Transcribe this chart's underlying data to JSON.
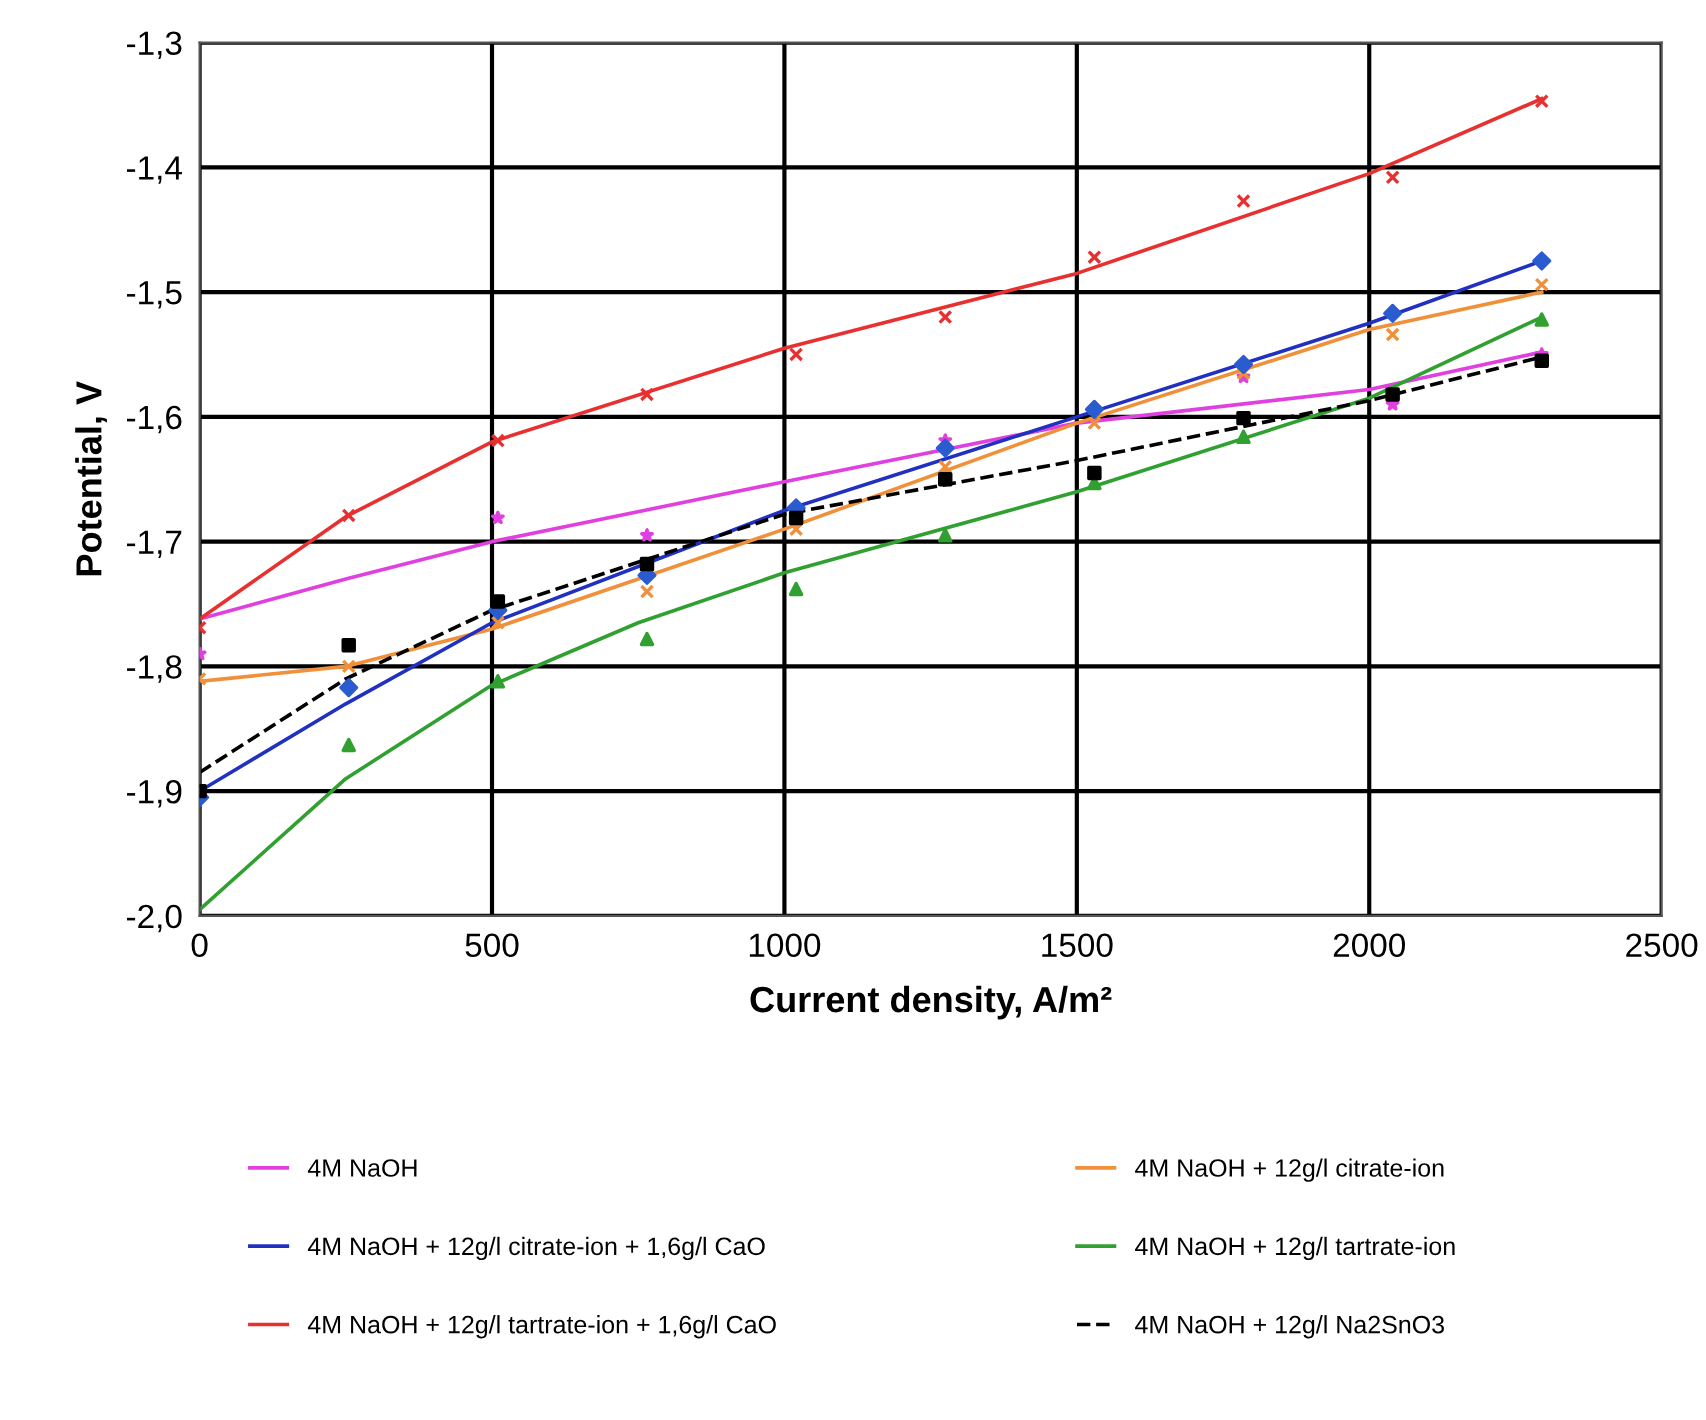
{
  "chart_data": {
    "type": "scatter",
    "xlabel": "Current density, A/m²",
    "ylabel": "Potential, V",
    "xlim": [
      0,
      2500
    ],
    "xticks": [
      0,
      500,
      1000,
      1500,
      2000,
      2500
    ],
    "ylim": [
      -2.0,
      -1.3
    ],
    "yticks": [
      {
        "value": -2.0,
        "label": "-2,0"
      },
      {
        "value": -1.9,
        "label": "-1,9"
      },
      {
        "value": -1.8,
        "label": "-1,8"
      },
      {
        "value": -1.7,
        "label": "-1,7"
      },
      {
        "value": -1.6,
        "label": "-1,6"
      },
      {
        "value": -1.5,
        "label": "-1,5"
      },
      {
        "value": -1.4,
        "label": "-1,4"
      },
      {
        "value": -1.3,
        "label": "-1,3"
      }
    ],
    "grid": true,
    "legend": "bottom",
    "series": [
      {
        "marker": "star",
        "color": "#e040e0",
        "x": [
          0,
          255,
          510,
          765,
          1020,
          1275,
          1530,
          1785,
          2040,
          2295
        ],
        "values": [
          -1.79,
          null,
          -1.681,
          -1.695,
          null,
          -1.619,
          null,
          -1.568,
          -1.59,
          -1.55
        ]
      },
      {
        "marker": "cross",
        "color": "#f0903a",
        "x": [
          0,
          255,
          510,
          765,
          1020,
          1275,
          1530,
          1785,
          2040,
          2295
        ],
        "values": [
          -1.81,
          -1.8,
          -1.765,
          -1.74,
          -1.69,
          -1.64,
          -1.605,
          -1.565,
          -1.534,
          -1.494
        ]
      },
      {
        "marker": "diamond",
        "color": "#2a5cd0",
        "x": [
          0,
          255,
          510,
          765,
          1020,
          1275,
          1530,
          1785,
          2040,
          2295
        ],
        "values": [
          -1.905,
          -1.817,
          -1.755,
          -1.727,
          -1.673,
          -1.625,
          -1.594,
          -1.558,
          -1.517,
          -1.475
        ]
      },
      {
        "marker": "triangle",
        "color": "#30a030",
        "x": [
          255,
          510,
          765,
          1020,
          1275,
          1530,
          1785,
          2040,
          2295
        ],
        "values": [
          -1.863,
          -1.812,
          -1.778,
          -1.738,
          -1.695,
          -1.653,
          -1.616,
          null,
          -1.522
        ]
      },
      {
        "marker": "cross",
        "color": "#e83030",
        "x": [
          0,
          255,
          510,
          765,
          1020,
          1275,
          1530,
          1785,
          2040,
          2295
        ],
        "values": [
          -1.769,
          -1.679,
          -1.619,
          -1.582,
          -1.55,
          -1.52,
          -1.472,
          -1.427,
          -1.408,
          -1.347
        ]
      },
      {
        "marker": "square",
        "color": "#000000",
        "x": [
          0,
          255,
          510,
          765,
          1020,
          1275,
          1530,
          1785,
          2040,
          2295
        ],
        "values": [
          -1.9,
          -1.783,
          -1.748,
          -1.718,
          -1.681,
          -1.65,
          -1.645,
          -1.601,
          -1.582,
          -1.555
        ]
      },
      {
        "type": "line",
        "name": "4M NaOH",
        "color": "#e040e0",
        "line_style": "solid",
        "x": [
          0,
          250,
          500,
          1000,
          1500,
          2000,
          2295
        ],
        "values": [
          -1.762,
          -1.73,
          -1.7,
          -1.652,
          -1.605,
          -1.578,
          -1.548
        ]
      },
      {
        "type": "line",
        "name": "4M NaOH + 12g/l citrate-ion",
        "color": "#f0903a",
        "line_style": "solid",
        "x": [
          0,
          250,
          500,
          1000,
          1500,
          2000,
          2295
        ],
        "values": [
          -1.812,
          -1.8,
          -1.77,
          -1.69,
          -1.605,
          -1.53,
          -1.5
        ]
      },
      {
        "type": "line",
        "name": "4M NaOH + 12g/l citrate-ion + 1,6g/l CaO",
        "color": "#2030c0",
        "line_style": "solid",
        "x": [
          0,
          250,
          500,
          1000,
          1500,
          2000,
          2295
        ],
        "values": [
          -1.9,
          -1.83,
          -1.765,
          -1.675,
          -1.6,
          -1.525,
          -1.475
        ]
      },
      {
        "type": "line",
        "name": "4M NaOH + 12g/l tartrate-ion",
        "color": "#30a030",
        "line_style": "solid",
        "x": [
          0,
          250,
          500,
          750,
          1000,
          1500,
          2000,
          2295
        ],
        "values": [
          -1.995,
          -1.89,
          -1.815,
          -1.765,
          -1.725,
          -1.66,
          -1.585,
          -1.52
        ]
      },
      {
        "type": "line",
        "name": "4M NaOH + 12g/l tartrate-ion + 1,6g/l CaO",
        "color": "#e83030",
        "line_style": "solid",
        "x": [
          0,
          250,
          500,
          1000,
          1500,
          2000,
          2295
        ],
        "values": [
          -1.762,
          -1.68,
          -1.62,
          -1.545,
          -1.485,
          -1.405,
          -1.345
        ]
      },
      {
        "type": "line",
        "name": "4M NaOH + 12g/l Na2SnO3",
        "color": "#000000",
        "line_style": "dashed",
        "x": [
          0,
          250,
          500,
          1000,
          1500,
          2000,
          2295
        ],
        "values": [
          -1.885,
          -1.81,
          -1.755,
          -1.678,
          -1.635,
          -1.587,
          -1.552
        ]
      }
    ]
  }
}
